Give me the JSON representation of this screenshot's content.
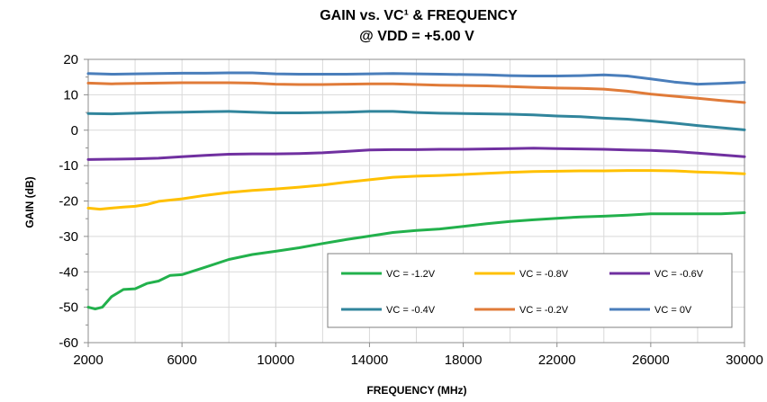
{
  "chart_data": {
    "type": "line",
    "title": "GAIN vs. VC¹ & FREQUENCY",
    "subtitle": "@ VDD = +5.00 V",
    "xlabel": "FREQUENCY (MHz)",
    "ylabel": "GAIN (dB)",
    "xlim": [
      2000,
      30000
    ],
    "ylim": [
      -60,
      20
    ],
    "xticks": [
      "2000",
      "6000",
      "10000",
      "14000",
      "18000",
      "22000",
      "26000",
      "30000"
    ],
    "yticks": [
      "20",
      "10",
      "0",
      "-10",
      "-20",
      "-30",
      "-40",
      "-50",
      "-60"
    ],
    "grid": true,
    "legend_position": "bottom-right",
    "series": [
      {
        "name": "VC = -1.2V",
        "color": "#22b14c",
        "x": [
          2000,
          2300,
          2600,
          3000,
          3500,
          4000,
          4500,
          5000,
          5500,
          6000,
          7000,
          8000,
          9000,
          10000,
          11000,
          12000,
          13000,
          14000,
          15000,
          16000,
          17000,
          18000,
          19000,
          20000,
          21000,
          22000,
          23000,
          24000,
          25000,
          26000,
          27000,
          28000,
          29000,
          30000
        ],
        "y": [
          -50,
          -50.5,
          -50,
          -47,
          -45,
          -44.8,
          -43.3,
          -42.6,
          -41,
          -40.8,
          -38.7,
          -36.5,
          -35.1,
          -34.2,
          -33.2,
          -32,
          -30.9,
          -29.9,
          -28.9,
          -28.3,
          -27.9,
          -27.2,
          -26.4,
          -25.8,
          -25.3,
          -24.9,
          -24.5,
          -24.3,
          -24,
          -23.6,
          -23.6,
          -23.6,
          -23.6,
          -23.3
        ]
      },
      {
        "name": "VC = -0.8V",
        "color": "#ffc000",
        "x": [
          2000,
          2500,
          3000,
          3500,
          4000,
          4500,
          5000,
          6000,
          7000,
          8000,
          9000,
          10000,
          11000,
          12000,
          13000,
          14000,
          15000,
          16000,
          17000,
          18000,
          19000,
          20000,
          21000,
          22000,
          23000,
          24000,
          25000,
          26000,
          27000,
          28000,
          29000,
          30000
        ],
        "y": [
          -22,
          -22.3,
          -22,
          -21.7,
          -21.5,
          -21,
          -20.1,
          -19.4,
          -18.4,
          -17.6,
          -17,
          -16.6,
          -16.1,
          -15.5,
          -14.7,
          -14,
          -13.3,
          -13,
          -12.8,
          -12.5,
          -12.2,
          -11.9,
          -11.7,
          -11.6,
          -11.5,
          -11.5,
          -11.4,
          -11.4,
          -11.5,
          -11.8,
          -12,
          -12.3
        ]
      },
      {
        "name": "VC = -0.6V",
        "color": "#7030a0",
        "x": [
          2000,
          3000,
          4000,
          5000,
          6000,
          7000,
          8000,
          9000,
          10000,
          11000,
          12000,
          13000,
          14000,
          15000,
          16000,
          17000,
          18000,
          19000,
          20000,
          21000,
          22000,
          23000,
          24000,
          25000,
          26000,
          27000,
          28000,
          29000,
          30000
        ],
        "y": [
          -8.3,
          -8.2,
          -8.1,
          -7.9,
          -7.5,
          -7.1,
          -6.8,
          -6.7,
          -6.7,
          -6.6,
          -6.4,
          -6,
          -5.6,
          -5.5,
          -5.5,
          -5.4,
          -5.4,
          -5.3,
          -5.2,
          -5.1,
          -5.2,
          -5.3,
          -5.4,
          -5.6,
          -5.7,
          -6,
          -6.5,
          -7,
          -7.5
        ]
      },
      {
        "name": "VC = -0.4V",
        "color": "#31859c",
        "x": [
          2000,
          3000,
          4000,
          5000,
          6000,
          7000,
          8000,
          9000,
          10000,
          11000,
          12000,
          13000,
          14000,
          15000,
          16000,
          17000,
          18000,
          19000,
          20000,
          21000,
          22000,
          23000,
          24000,
          25000,
          26000,
          27000,
          28000,
          29000,
          30000
        ],
        "y": [
          4.7,
          4.6,
          4.8,
          5,
          5.1,
          5.2,
          5.3,
          5.1,
          4.9,
          4.9,
          5.0,
          5.1,
          5.3,
          5.3,
          5.0,
          4.8,
          4.7,
          4.6,
          4.5,
          4.3,
          4.0,
          3.8,
          3.4,
          3.1,
          2.6,
          2.0,
          1.3,
          0.7,
          0.1
        ]
      },
      {
        "name": "VC = -0.2V",
        "color": "#e07b39",
        "x": [
          2000,
          3000,
          4000,
          5000,
          6000,
          7000,
          8000,
          9000,
          10000,
          11000,
          12000,
          13000,
          14000,
          15000,
          16000,
          17000,
          18000,
          19000,
          20000,
          21000,
          22000,
          23000,
          24000,
          25000,
          26000,
          27000,
          28000,
          29000,
          30000
        ],
        "y": [
          13.3,
          13.1,
          13.2,
          13.3,
          13.4,
          13.4,
          13.4,
          13.3,
          13.0,
          12.9,
          12.9,
          13.0,
          13.1,
          13.1,
          12.9,
          12.7,
          12.6,
          12.5,
          12.3,
          12.1,
          11.9,
          11.8,
          11.6,
          11.0,
          10.2,
          9.6,
          9.0,
          8.4,
          7.8
        ]
      },
      {
        "name": "VC = 0V",
        "color": "#4a7ebb",
        "x": [
          2000,
          3000,
          4000,
          5000,
          6000,
          7000,
          8000,
          9000,
          10000,
          11000,
          12000,
          13000,
          14000,
          15000,
          16000,
          17000,
          18000,
          19000,
          20000,
          21000,
          22000,
          23000,
          24000,
          25000,
          26000,
          27000,
          28000,
          29000,
          30000
        ],
        "y": [
          16.0,
          15.8,
          15.9,
          16.0,
          16.1,
          16.1,
          16.2,
          16.2,
          15.9,
          15.8,
          15.8,
          15.8,
          15.9,
          16.0,
          15.9,
          15.8,
          15.7,
          15.6,
          15.4,
          15.3,
          15.3,
          15.4,
          15.6,
          15.3,
          14.5,
          13.6,
          13.0,
          13.2,
          13.5
        ]
      }
    ]
  }
}
